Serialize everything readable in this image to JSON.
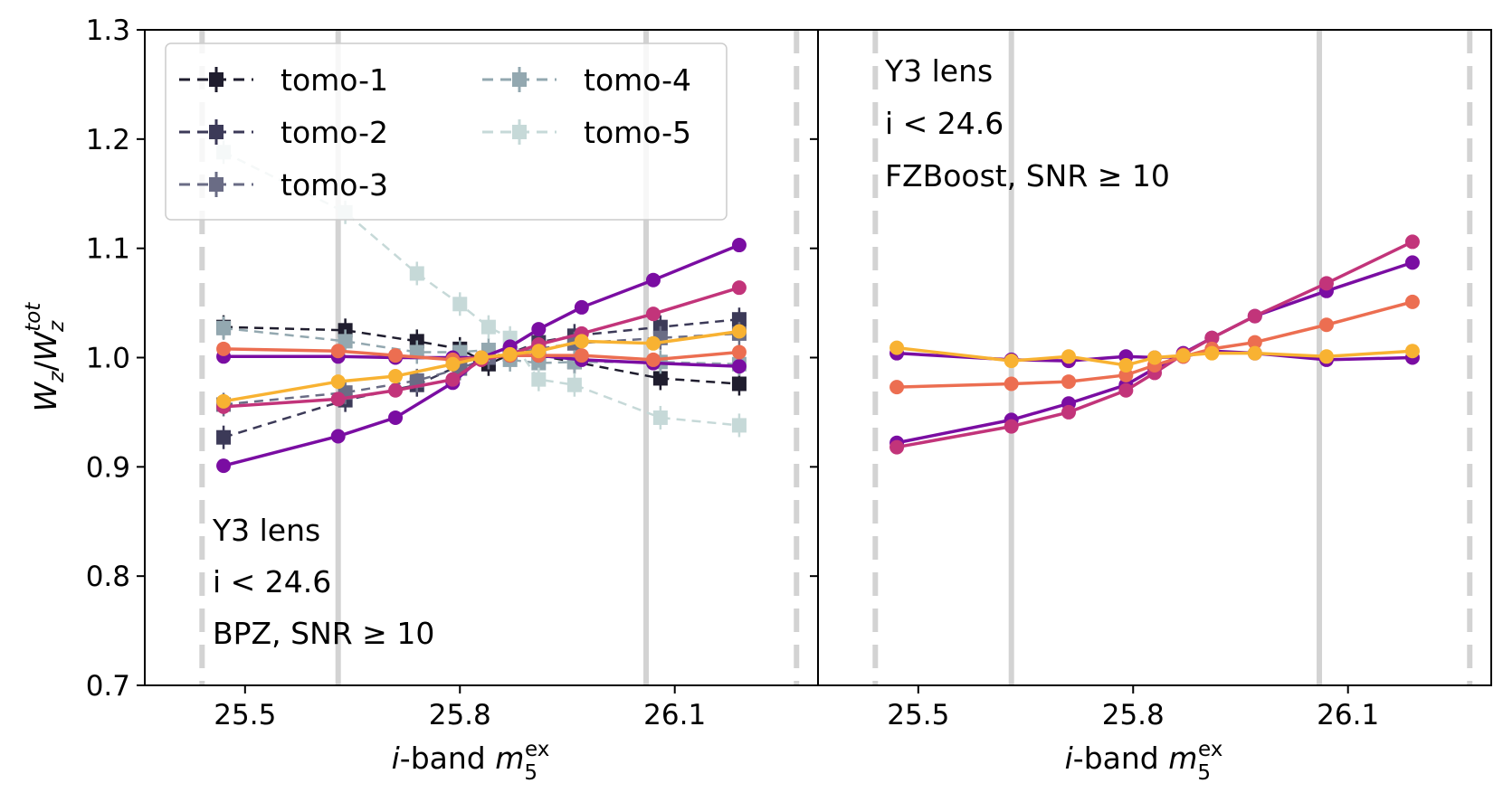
{
  "figure": {
    "y_axis_label": {
      "main": "W",
      "main_sub": "z",
      "slash": "/",
      "den": "W",
      "den_sub": "z",
      "den_sup": "tot"
    },
    "x_axis_label": {
      "prefix": "i",
      "rest": "-band ",
      "m": "m",
      "m_sub": "5",
      "m_sup": "ex"
    },
    "y_ticks": [
      "0.7",
      "0.8",
      "0.9",
      "1.0",
      "1.1",
      "1.2",
      "1.3"
    ],
    "x_ticks": [
      "25.5",
      "25.8",
      "26.1"
    ]
  },
  "colors": {
    "tomo_colors": [
      "#1f1d2e",
      "#3c3a58",
      "#6a6c85",
      "#93a8b0",
      "#c6d9d8"
    ],
    "solid_colors": [
      "#7a0da2",
      "#c2347a",
      "#ec6e51",
      "#f8b232"
    ],
    "vline_color": "#d3d3d3"
  },
  "legend": {
    "entries": [
      {
        "label": "tomo-1"
      },
      {
        "label": "tomo-2"
      },
      {
        "label": "tomo-3"
      },
      {
        "label": "tomo-4"
      },
      {
        "label": "tomo-5"
      }
    ]
  },
  "chart_data": [
    {
      "type": "line",
      "panel": "left",
      "annotation": [
        "Y3 lens",
        "i < 24.6",
        "BPZ, SNR ≥ 10"
      ],
      "xlim": [
        25.36,
        26.3
      ],
      "ylim": [
        0.7,
        1.3
      ],
      "vlines_dashed": [
        25.44,
        26.27
      ],
      "vlines_solid": [
        25.63,
        26.06
      ],
      "dashed_series": [
        {
          "name": "tomo-1",
          "x": [
            25.47,
            25.64,
            25.74,
            25.8,
            25.84,
            25.87,
            25.91,
            25.96,
            26.08,
            26.19
          ],
          "y": [
            1.028,
            1.025,
            1.015,
            1.008,
            0.994,
            1.003,
            1.002,
            0.996,
            0.981,
            0.976
          ]
        },
        {
          "name": "tomo-2",
          "x": [
            25.47,
            25.64,
            25.74,
            25.8,
            25.84,
            25.87,
            25.91,
            25.96,
            26.08,
            26.19
          ],
          "y": [
            0.927,
            0.961,
            0.975,
            0.993,
            1.0,
            1.004,
            1.014,
            1.02,
            1.028,
            1.035
          ]
        },
        {
          "name": "tomo-3",
          "x": [
            25.47,
            25.64,
            25.74,
            25.8,
            25.84,
            25.87,
            25.91,
            25.96,
            26.08,
            26.19
          ],
          "y": [
            0.957,
            0.968,
            0.979,
            0.99,
            1.0,
            1.003,
            1.008,
            1.013,
            1.018,
            1.022
          ]
        },
        {
          "name": "tomo-4",
          "x": [
            25.47,
            25.64,
            25.74,
            25.8,
            25.84,
            25.87,
            25.91,
            25.96,
            26.08,
            26.19
          ],
          "y": [
            1.027,
            1.015,
            1.005,
            1.005,
            1.007,
            0.998,
            0.995,
            0.996,
            0.996,
            0.994
          ]
        },
        {
          "name": "tomo-5",
          "x": [
            25.47,
            25.64,
            25.74,
            25.8,
            25.84,
            25.87,
            25.91,
            25.96,
            26.08,
            26.19
          ],
          "y": [
            1.188,
            1.133,
            1.077,
            1.049,
            1.028,
            1.018,
            0.98,
            0.975,
            0.945,
            0.938
          ]
        }
      ],
      "solid_series": [
        {
          "x": [
            25.47,
            25.63,
            25.71,
            25.79,
            25.83,
            25.87,
            25.91,
            25.97,
            26.07,
            26.19
          ],
          "y": [
            0.901,
            0.928,
            0.945,
            0.977,
            1.0,
            1.01,
            1.026,
            1.046,
            1.071,
            1.103
          ]
        },
        {
          "x": [
            25.47,
            25.63,
            25.71,
            25.79,
            25.83,
            25.87,
            25.91,
            25.97,
            26.07,
            26.19
          ],
          "y": [
            0.955,
            0.962,
            0.97,
            0.98,
            0.998,
            1.003,
            1.012,
            1.022,
            1.04,
            1.064
          ]
        },
        {
          "x": [
            25.47,
            25.63,
            25.71,
            25.79,
            25.83,
            25.87,
            25.91,
            25.97,
            26.07,
            26.19
          ],
          "y": [
            1.008,
            1.006,
            1.002,
            0.998,
            1.0,
            1.002,
            1.002,
            1.002,
            0.998,
            1.005
          ]
        },
        {
          "x": [
            25.47,
            25.63,
            25.71,
            25.79,
            25.83,
            25.87,
            25.91,
            25.97,
            26.07,
            26.19
          ],
          "y": [
            0.96,
            0.978,
            0.983,
            0.994,
            1.0,
            1.003,
            1.006,
            1.015,
            1.013,
            1.024
          ]
        },
        {
          "x": [
            25.47,
            25.63,
            25.71,
            25.79,
            25.83,
            25.87,
            25.91,
            25.97,
            26.07,
            26.19
          ],
          "y": [
            1.001,
            1.001,
            1.0,
            1.0,
            1.0,
            1.002,
            1.002,
            0.998,
            0.995,
            0.992
          ]
        }
      ]
    },
    {
      "type": "line",
      "panel": "right",
      "annotation": [
        "Y3 lens",
        "i < 24.6",
        "FZBoost, SNR ≥ 10"
      ],
      "xlim": [
        25.36,
        26.3
      ],
      "ylim": [
        0.7,
        1.3
      ],
      "vlines_dashed": [
        25.44,
        26.27
      ],
      "vlines_solid": [
        25.63,
        26.06
      ],
      "dashed_series": [],
      "solid_series": [
        {
          "x": [
            25.47,
            25.63,
            25.71,
            25.79,
            25.83,
            25.87,
            25.91,
            25.97,
            26.07,
            26.19
          ],
          "y": [
            0.922,
            0.943,
            0.958,
            0.975,
            0.99,
            1.004,
            1.018,
            1.038,
            1.061,
            1.087
          ]
        },
        {
          "x": [
            25.47,
            25.63,
            25.71,
            25.79,
            25.83,
            25.87,
            25.91,
            25.97,
            26.07,
            26.19
          ],
          "y": [
            0.918,
            0.937,
            0.95,
            0.97,
            0.986,
            1.003,
            1.018,
            1.038,
            1.068,
            1.106
          ]
        },
        {
          "x": [
            25.47,
            25.63,
            25.71,
            25.79,
            25.83,
            25.87,
            25.91,
            25.97,
            26.07,
            26.19
          ],
          "y": [
            0.973,
            0.976,
            0.978,
            0.984,
            0.993,
            1.001,
            1.008,
            1.014,
            1.03,
            1.051
          ]
        },
        {
          "x": [
            25.47,
            25.63,
            25.71,
            25.79,
            25.83,
            25.87,
            25.91,
            25.97,
            26.07,
            26.19
          ],
          "y": [
            1.009,
            0.997,
            1.001,
            0.993,
            1.0,
            1.002,
            1.004,
            1.004,
            1.001,
            1.006
          ]
        },
        {
          "x": [
            25.47,
            25.63,
            25.71,
            25.79,
            25.83,
            25.87,
            25.91,
            25.97,
            26.07,
            26.19
          ],
          "y": [
            1.004,
            0.998,
            0.997,
            1.001,
            1.0,
            1.001,
            1.006,
            1.004,
            0.998,
            1.0
          ]
        }
      ]
    }
  ]
}
